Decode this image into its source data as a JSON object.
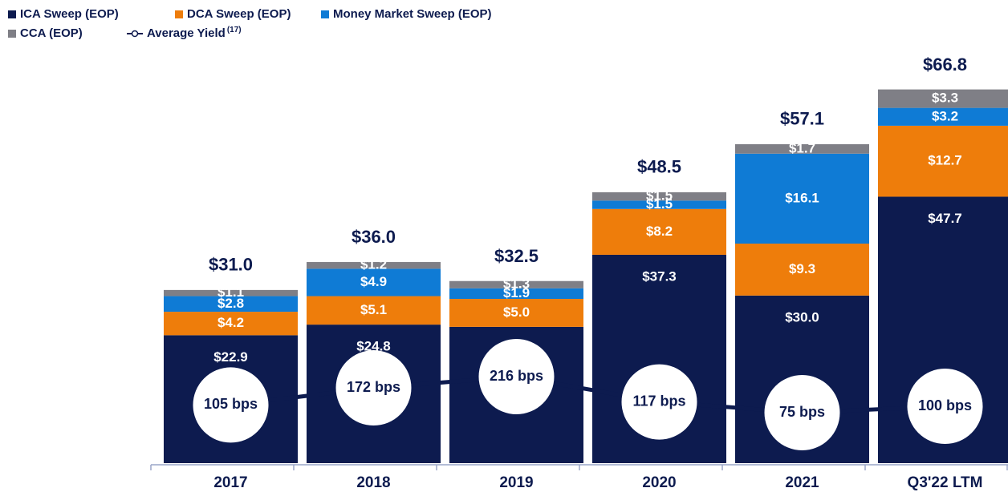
{
  "chart_data": {
    "type": "bar",
    "stacked": true,
    "categories": [
      "2017",
      "2018",
      "2019",
      "2020",
      "2021",
      "Q3'22 LTM"
    ],
    "ylim": [
      0,
      70
    ],
    "series": [
      {
        "name": "ICA Sweep (EOP)",
        "color": "#0d1b4f",
        "values": [
          22.9,
          24.8,
          24.4,
          37.3,
          30.0,
          47.7
        ],
        "value_labels": [
          "$22.9",
          "$24.8",
          "$24.4",
          "$37.3",
          "$30.0",
          "$47.7"
        ]
      },
      {
        "name": "DCA Sweep (EOP)",
        "color": "#ee7d0b",
        "values": [
          4.2,
          5.1,
          5.0,
          8.2,
          9.3,
          12.7
        ],
        "value_labels": [
          "$4.2",
          "$5.1",
          "$5.0",
          "$8.2",
          "$9.3",
          "$12.7"
        ]
      },
      {
        "name": "Money Market Sweep (EOP)",
        "color": "#0f7bd5",
        "values": [
          2.8,
          4.9,
          1.9,
          1.5,
          16.1,
          3.2
        ],
        "value_labels": [
          "$2.8",
          "$4.9",
          "$1.9",
          "$1.5",
          "$16.1",
          "$3.2"
        ]
      },
      {
        "name": "CCA (EOP)",
        "color": "#7f7f86",
        "values": [
          1.1,
          1.2,
          1.3,
          1.5,
          1.7,
          3.3
        ],
        "value_labels": [
          "$1.1",
          "$1.2",
          "$1.3",
          "$1.5",
          "$1.7",
          "$3.3"
        ]
      }
    ],
    "totals": [
      31.0,
      36.0,
      32.5,
      48.5,
      57.1,
      66.8
    ],
    "total_labels": [
      "$31.0",
      "$36.0",
      "$32.5",
      "$48.5",
      "$57.1",
      "$66.8"
    ],
    "line": {
      "name": "Average Yield",
      "footnote": "(17)",
      "color": "#0d1b4f",
      "values": [
        105,
        172,
        216,
        117,
        75,
        100
      ],
      "value_labels": [
        "105 bps",
        "172 bps",
        "216 bps",
        "117 bps",
        "75 bps",
        "100 bps"
      ]
    }
  }
}
